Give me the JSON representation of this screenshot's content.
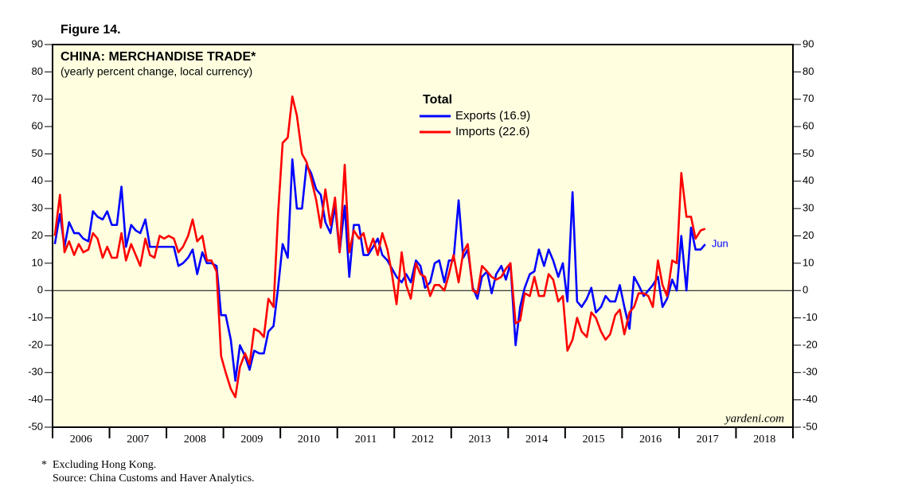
{
  "chart_data": {
    "type": "line",
    "figure_label": "Figure 14.",
    "title": "CHINA: MERCHANDISE TRADE*",
    "subtitle": "(yearly percent change, local currency)",
    "legend_title": "Total",
    "end_label": "Jun",
    "credit": "yardeni.com",
    "footnotes": [
      "*",
      "Excluding Hong Kong.",
      "Source: China Customs and Haver Analytics."
    ],
    "xlim": [
      2006,
      2019
    ],
    "xticks": [
      2006,
      2007,
      2008,
      2009,
      2010,
      2011,
      2012,
      2013,
      2014,
      2015,
      2016,
      2017,
      2018
    ],
    "ylim": [
      -50,
      90
    ],
    "yticks": [
      -50,
      -40,
      -30,
      -20,
      -10,
      0,
      10,
      20,
      30,
      40,
      50,
      60,
      70,
      80,
      90
    ],
    "x": [
      2006.04,
      2006.13,
      2006.21,
      2006.29,
      2006.38,
      2006.46,
      2006.54,
      2006.63,
      2006.71,
      2006.79,
      2006.88,
      2006.96,
      2007.04,
      2007.13,
      2007.21,
      2007.29,
      2007.38,
      2007.46,
      2007.54,
      2007.63,
      2007.71,
      2007.79,
      2007.88,
      2007.96,
      2008.04,
      2008.13,
      2008.21,
      2008.29,
      2008.38,
      2008.46,
      2008.54,
      2008.63,
      2008.71,
      2008.79,
      2008.88,
      2008.96,
      2009.04,
      2009.13,
      2009.21,
      2009.29,
      2009.38,
      2009.46,
      2009.54,
      2009.63,
      2009.71,
      2009.79,
      2009.88,
      2009.96,
      2010.04,
      2010.13,
      2010.21,
      2010.29,
      2010.38,
      2010.46,
      2010.54,
      2010.63,
      2010.71,
      2010.79,
      2010.88,
      2010.96,
      2011.04,
      2011.13,
      2011.21,
      2011.29,
      2011.38,
      2011.46,
      2011.54,
      2011.63,
      2011.71,
      2011.79,
      2011.88,
      2011.96,
      2012.04,
      2012.13,
      2012.21,
      2012.29,
      2012.38,
      2012.46,
      2012.54,
      2012.63,
      2012.71,
      2012.79,
      2012.88,
      2012.96,
      2013.04,
      2013.13,
      2013.21,
      2013.29,
      2013.38,
      2013.46,
      2013.54,
      2013.63,
      2013.71,
      2013.79,
      2013.88,
      2013.96,
      2014.04,
      2014.13,
      2014.21,
      2014.29,
      2014.38,
      2014.46,
      2014.54,
      2014.63,
      2014.71,
      2014.79,
      2014.88,
      2014.96,
      2015.04,
      2015.13,
      2015.21,
      2015.29,
      2015.38,
      2015.46,
      2015.54,
      2015.63,
      2015.71,
      2015.79,
      2015.88,
      2015.96,
      2016.04,
      2016.13,
      2016.21,
      2016.29,
      2016.38,
      2016.46,
      2016.54,
      2016.63,
      2016.71,
      2016.79,
      2016.88,
      2016.96,
      2017.04,
      2017.13,
      2017.21,
      2017.29,
      2017.38,
      2017.46
    ],
    "series": [
      {
        "name": "Exports (16.9)",
        "color": "#0000ff",
        "values": [
          17,
          28,
          16,
          25,
          21,
          21,
          19,
          18,
          29,
          27,
          26,
          29,
          24,
          24,
          38,
          16,
          24,
          22,
          21,
          26,
          16,
          16,
          16,
          16,
          16,
          16,
          9,
          10,
          12,
          15,
          6,
          14,
          10,
          10,
          9,
          -9,
          -9,
          -18,
          -33,
          -20,
          -24,
          -29,
          -22,
          -23,
          -23,
          -15,
          -13,
          1,
          17,
          12,
          48,
          30,
          30,
          46,
          43,
          37,
          35,
          25,
          21,
          31,
          14,
          31,
          5,
          24,
          24,
          13,
          13,
          16,
          19,
          13,
          11,
          8,
          5,
          3,
          6,
          3,
          11,
          9,
          1,
          3,
          10,
          11,
          3,
          11,
          11,
          33,
          12,
          15,
          1,
          -3,
          5,
          7,
          -1,
          6,
          9,
          4,
          10,
          -20,
          -6,
          1,
          6,
          7,
          15,
          9,
          15,
          11,
          5,
          10,
          -4,
          36,
          -4,
          -6,
          -3,
          1,
          -8,
          -6,
          -2,
          -4,
          -4,
          2,
          -6,
          -14,
          5,
          2,
          -2,
          0,
          2,
          5,
          -6,
          -3,
          4,
          0,
          20,
          0,
          23,
          15,
          15,
          16.9
        ]
      },
      {
        "name": "Imports (22.6)",
        "color": "#ff0000",
        "values": [
          20,
          35,
          14,
          18,
          13,
          17,
          14,
          15,
          21,
          19,
          12,
          16,
          12,
          12,
          21,
          11,
          17,
          13,
          9,
          19,
          13,
          12,
          20,
          19,
          20,
          19,
          14,
          16,
          20,
          26,
          18,
          20,
          11,
          11,
          7,
          -24,
          -30,
          -36,
          -39,
          -28,
          -23,
          -27,
          -14,
          -15,
          -17,
          -3,
          -6,
          28,
          54,
          56,
          71,
          64,
          50,
          47,
          41,
          33,
          23,
          37,
          24,
          34,
          14,
          46,
          14,
          22,
          19,
          21,
          14,
          19,
          13,
          21,
          15,
          6,
          -5,
          14,
          2,
          -3,
          10,
          6,
          5,
          -2,
          2,
          2,
          0,
          6,
          13,
          3,
          14,
          17,
          0,
          -1,
          9,
          7,
          5,
          4,
          5,
          8,
          10,
          -12,
          -11,
          -1,
          -2,
          5,
          -2,
          -2,
          6,
          4,
          -4,
          -2,
          -22,
          -18,
          -10,
          -15,
          -17,
          -8,
          -10,
          -15,
          -18,
          -16,
          -9,
          -7,
          -16,
          -8,
          -6,
          -1,
          -1,
          -2,
          -6,
          11,
          2,
          -2,
          11,
          10,
          43,
          27,
          27,
          19,
          22,
          22.6
        ]
      }
    ]
  }
}
